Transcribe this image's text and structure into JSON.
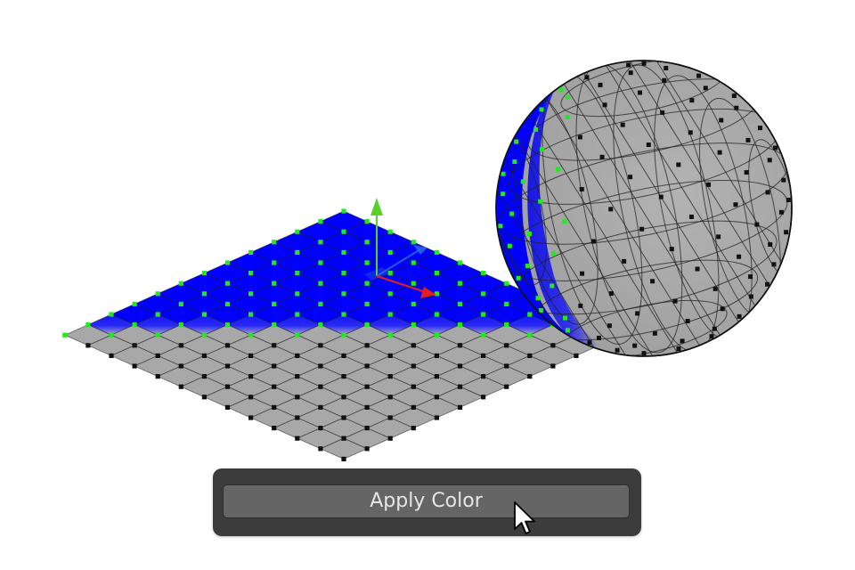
{
  "viewport": {
    "background": "#ffffff"
  },
  "scene": {
    "objects": [
      "plane",
      "uv-sphere"
    ],
    "selected_vertex_color": "#22e822",
    "unselected_vertex_color": "#111111",
    "paint_color": "#0000ff",
    "mesh_color": "#a8a8a8",
    "gizmo": {
      "x_axis_color": "#e02020",
      "y_axis_color": "#2f6fe0",
      "z_axis_color": "#5ad02a"
    }
  },
  "operator_panel": {
    "apply_label": "Apply Color"
  },
  "cursor": {
    "icon": "arrow-pointer-icon"
  }
}
